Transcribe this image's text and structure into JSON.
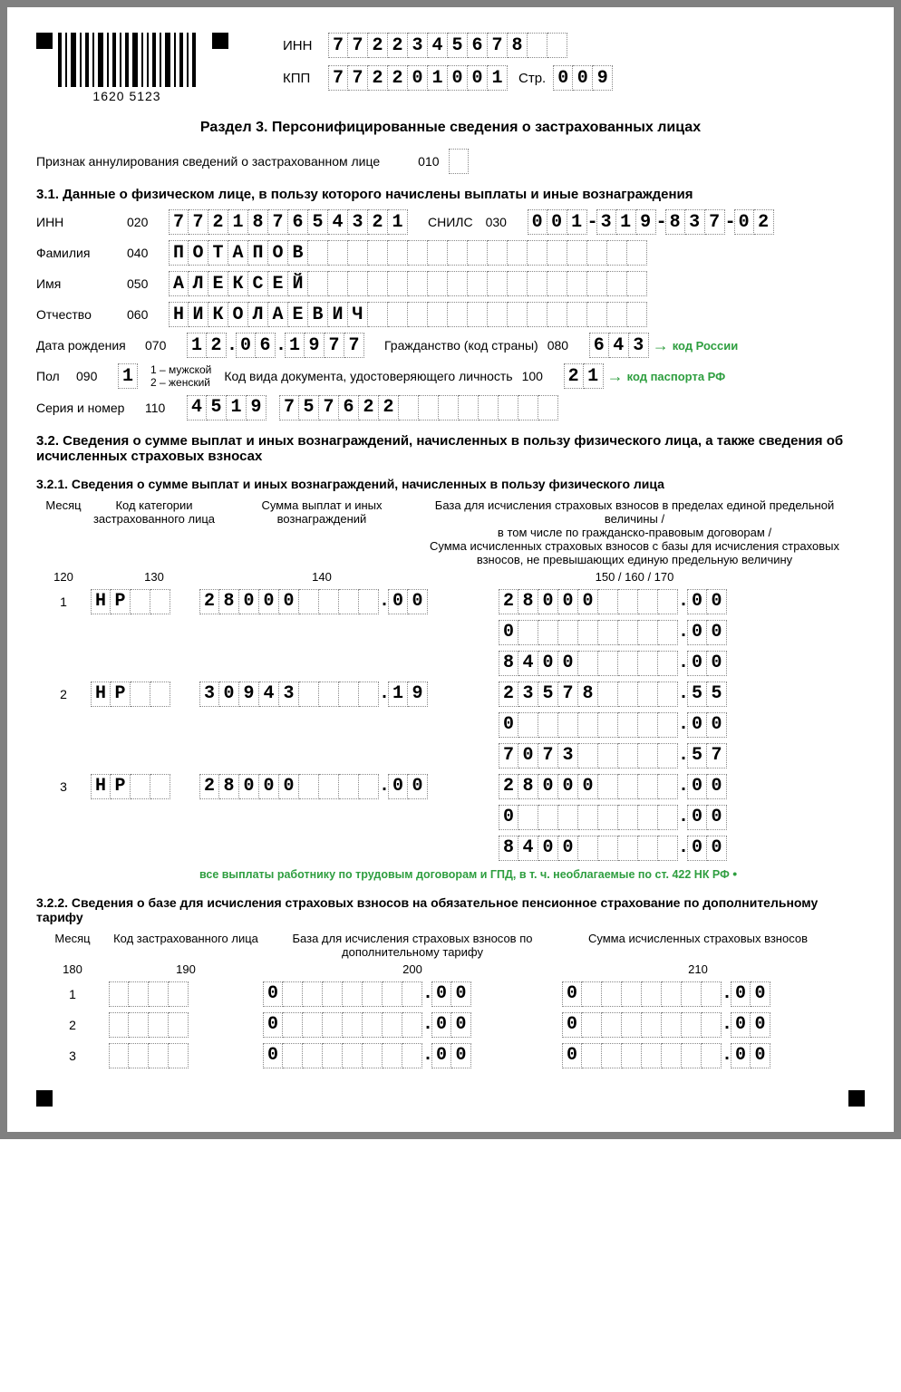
{
  "barcode_text": "1620  5123",
  "header": {
    "inn_label": "ИНН",
    "inn": "7722345678",
    "kpp_label": "КПП",
    "kpp": "772201001",
    "page_label": "Стр.",
    "page": "009"
  },
  "section_title": "Раздел 3. Персонифицированные сведения о застрахованных лицах",
  "annul": {
    "label": "Признак аннулирования сведений о застрахованном лице",
    "code": "010",
    "value": ""
  },
  "s31_title": "3.1. Данные о физическом лице, в пользу которого начислены выплаты и иные вознаграждения",
  "person": {
    "inn_label": "ИНН",
    "inn_code": "020",
    "inn": "772187654321",
    "snils_label": "СНИЛС",
    "snils_code": "030",
    "snils": "001-319-837-02",
    "fam_label": "Фамилия",
    "fam_code": "040",
    "fam": "ПОТАПОВ",
    "name_label": "Имя",
    "name_code": "050",
    "name": "АЛЕКСЕЙ",
    "otch_label": "Отчество",
    "otch_code": "060",
    "otch": "НИКОЛАЕВИЧ",
    "dob_label": "Дата рождения",
    "dob_code": "070",
    "dob": "12.06.1977",
    "citizen_label": "Гражданство (код страны)",
    "citizen_code": "080",
    "citizen": "643",
    "citizen_note": "код России",
    "sex_label": "Пол",
    "sex_code": "090",
    "sex": "1",
    "sex_legend": "1 – мужской\n2 – женский",
    "doc_label": "Код вида документа, удостоверяющего личность",
    "doc_code": "100",
    "doc": "21",
    "doc_note": "код паспорта РФ",
    "serial_label": "Серия и номер",
    "serial_code": "110",
    "serial": "4519 757622"
  },
  "s32_title": "3.2. Сведения о сумме выплат и иных вознаграждений, начисленных в пользу физического лица, а также сведения об исчисленных страховых взносах",
  "s321_title": "3.2.1. Сведения о сумме выплат и иных вознаграждений, начисленных в пользу физического лица",
  "cols321": {
    "month": "Месяц",
    "cat": "Код категории застрахованного лица",
    "sum": "Сумма выплат и иных вознаграждений",
    "base": "База для исчисления страховых взносов в пределах единой предельной величины /\nв том числе по гражданско-правовым договорам /\nСумма исчисленных страховых взносов с базы для исчисления страховых взносов, не превышающих единую предельную величину",
    "n120": "120",
    "n130": "130",
    "n140": "140",
    "n150": "150 / 160 / 170"
  },
  "rows321": [
    {
      "m": "1",
      "cat": "НР",
      "sum_i": "28000",
      "sum_d": "00",
      "b1_i": "28000",
      "b1_d": "00",
      "b2_i": "0",
      "b2_d": "00",
      "b3_i": "8400",
      "b3_d": "00"
    },
    {
      "m": "2",
      "cat": "НР",
      "sum_i": "30943",
      "sum_d": "19",
      "b1_i": "23578",
      "b1_d": "55",
      "b2_i": "0",
      "b2_d": "00",
      "b3_i": "7073",
      "b3_d": "57"
    },
    {
      "m": "3",
      "cat": "НР",
      "sum_i": "28000",
      "sum_d": "00",
      "b1_i": "28000",
      "b1_d": "00",
      "b2_i": "0",
      "b2_d": "00",
      "b3_i": "8400",
      "b3_d": "00"
    }
  ],
  "green_note": "все выплаты работнику по трудовым договорам и ГПД, в т. ч. необлагаемые по ст. 422 НК РФ",
  "s322_title": "3.2.2. Сведения о базе для исчисления страховых взносов  на обязательное пенсионное страхование по дополнительному тарифу",
  "cols322": {
    "month": "Месяц",
    "cat": "Код застрахованного лица",
    "base": "База для исчисления страховых взносов по дополнительному тарифу",
    "sum": "Сумма исчисленных страховых взносов",
    "n180": "180",
    "n190": "190",
    "n200": "200",
    "n210": "210"
  },
  "rows322": [
    {
      "m": "1",
      "cat": "",
      "base_i": "0",
      "base_d": "00",
      "sum_i": "0",
      "sum_d": "00"
    },
    {
      "m": "2",
      "cat": "",
      "base_i": "0",
      "base_d": "00",
      "sum_i": "0",
      "sum_d": "00"
    },
    {
      "m": "3",
      "cat": "",
      "base_i": "0",
      "base_d": "00",
      "sum_i": "0",
      "sum_d": "00"
    }
  ]
}
